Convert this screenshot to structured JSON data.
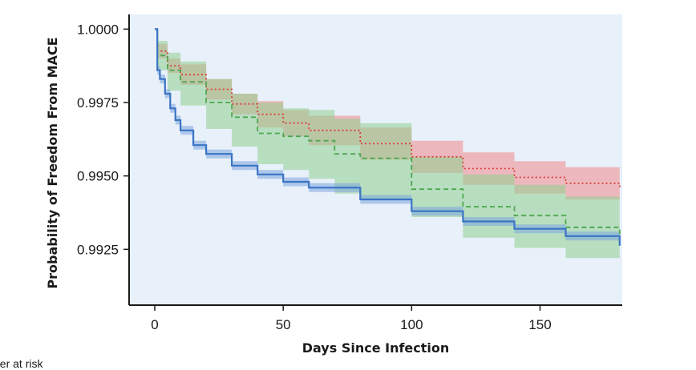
{
  "chart_data": {
    "type": "line",
    "subtype": "kaplan-meier survival curves with confidence bands",
    "title": "",
    "xlabel": "Days Since Infection",
    "ylabel": "Probability of Freedom From MACE",
    "xlim": [
      -10,
      182
    ],
    "ylim": [
      0.9906,
      1.0005
    ],
    "xticks": [
      0,
      50,
      100,
      150
    ],
    "xtick_labels": [
      "0",
      "50",
      "100",
      "150"
    ],
    "yticks": [
      1.0,
      0.9975,
      0.995,
      0.9925
    ],
    "ytick_labels": [
      "1.0000",
      "0.9975",
      "0.9950",
      "0.9925"
    ],
    "grid": false,
    "background": "#e8f0fa",
    "series": [
      {
        "name": "series-red",
        "line_style": "dotted",
        "color": "#d9403a",
        "band_color": "#f08a8a",
        "x": [
          0,
          1,
          5,
          10,
          20,
          30,
          40,
          50,
          60,
          80,
          100,
          120,
          140,
          160,
          181
        ],
        "values": [
          1.0,
          0.99925,
          0.99875,
          0.99845,
          0.99795,
          0.99745,
          0.9971,
          0.9968,
          0.99655,
          0.9961,
          0.99565,
          0.99525,
          0.99495,
          0.99475,
          0.99458
        ],
        "lower": [
          1.0,
          0.999,
          0.9985,
          0.9981,
          0.9976,
          0.9971,
          0.99665,
          0.99635,
          0.99605,
          0.99555,
          0.9951,
          0.9947,
          0.9944,
          0.9942,
          0.994
        ],
        "upper": [
          1.0,
          0.9995,
          0.999,
          0.9988,
          0.9983,
          0.9978,
          0.99755,
          0.99725,
          0.99705,
          0.99665,
          0.9962,
          0.9958,
          0.9955,
          0.9953,
          0.99515
        ]
      },
      {
        "name": "series-green",
        "line_style": "dashed",
        "color": "#4fa64f",
        "band_color": "#8fd08f",
        "x": [
          0,
          1,
          5,
          10,
          20,
          30,
          40,
          50,
          60,
          70,
          80,
          100,
          120,
          140,
          160,
          181
        ],
        "values": [
          1.0,
          0.9991,
          0.9986,
          0.9982,
          0.9975,
          0.997,
          0.99645,
          0.99635,
          0.9962,
          0.99575,
          0.9956,
          0.99455,
          0.99395,
          0.99365,
          0.99325,
          0.99295
        ],
        "lower": [
          1.0,
          0.9986,
          0.9979,
          0.9974,
          0.9966,
          0.996,
          0.9954,
          0.9952,
          0.9949,
          0.9944,
          0.9942,
          0.9936,
          0.9929,
          0.99255,
          0.9922,
          0.99185
        ],
        "upper": [
          1.0,
          0.9996,
          0.9992,
          0.9989,
          0.9983,
          0.9978,
          0.9975,
          0.9973,
          0.99725,
          0.99695,
          0.9968,
          0.99565,
          0.99505,
          0.9947,
          0.9943,
          0.99405
        ]
      },
      {
        "name": "series-blue",
        "line_style": "solid",
        "color": "#3a74c4",
        "band_color": "#7aa6dc",
        "x": [
          0,
          1,
          2,
          4,
          6,
          8,
          10,
          15,
          20,
          30,
          40,
          50,
          60,
          80,
          100,
          120,
          140,
          160,
          181
        ],
        "values": [
          1.0,
          0.9986,
          0.9983,
          0.9978,
          0.9973,
          0.9969,
          0.99655,
          0.99605,
          0.99575,
          0.99535,
          0.99505,
          0.9948,
          0.9946,
          0.9942,
          0.9938,
          0.99345,
          0.9932,
          0.99295,
          0.99262
        ],
        "lower": [
          1.0,
          0.99845,
          0.99815,
          0.99765,
          0.99715,
          0.99675,
          0.9964,
          0.9959,
          0.9956,
          0.9952,
          0.9949,
          0.99465,
          0.99445,
          0.99405,
          0.99365,
          0.9933,
          0.99305,
          0.9928,
          0.99248
        ],
        "upper": [
          1.0,
          0.99875,
          0.99845,
          0.99795,
          0.99745,
          0.99705,
          0.9967,
          0.9962,
          0.9959,
          0.9955,
          0.9952,
          0.99495,
          0.99475,
          0.99435,
          0.99395,
          0.9936,
          0.99335,
          0.9931,
          0.99276
        ]
      }
    ],
    "risk_table_label": "oer at risk"
  }
}
